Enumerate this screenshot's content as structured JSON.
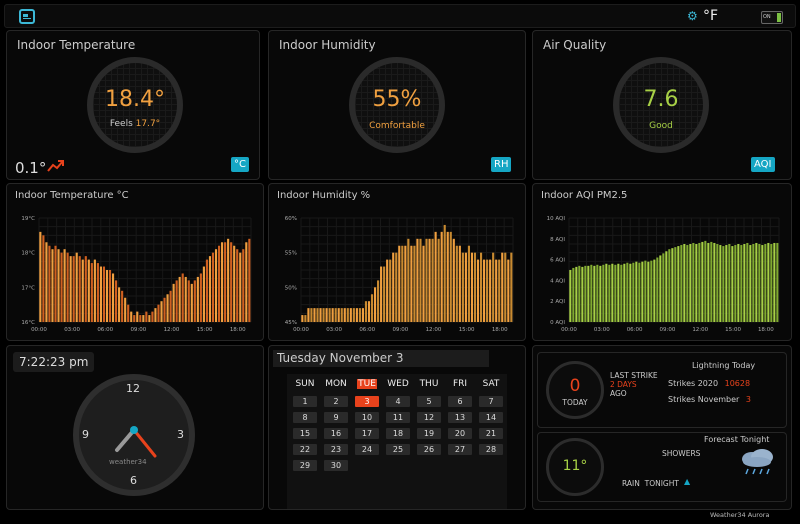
{
  "topbar": {
    "unit": "°F",
    "battery": "ON"
  },
  "temp_card": {
    "title": "Indoor Temperature",
    "value": "18.4°",
    "feels_label": "Feels",
    "feels_value": "17.7°",
    "trend": "0.1°",
    "unit_button": "°C"
  },
  "humidity_card": {
    "title": "Indoor Humidity",
    "value": "55%",
    "status": "Comfortable",
    "unit_button": "RH"
  },
  "air_card": {
    "title": "Air Quality",
    "value": "7.6",
    "status": "Good",
    "unit_button": "AQI"
  },
  "colors": {
    "accent": "#15a6c4",
    "temp": "#f0a040",
    "humidity": "#f0a040",
    "air": "#a7d046",
    "red": "#e8421c"
  },
  "chart_data": [
    {
      "type": "bar",
      "title": "Indoor Temperature °C",
      "y_ticks": [
        "19°C",
        "18°C",
        "17°C",
        "16°C"
      ],
      "x_ticks": [
        "00:00",
        "03:00",
        "06:00",
        "09:00",
        "12:00",
        "15:00",
        "18:00"
      ],
      "ylim": [
        16,
        19
      ],
      "values": [
        18.6,
        18.5,
        18.3,
        18.2,
        18.1,
        18.2,
        18.1,
        18.0,
        18.1,
        18.0,
        17.9,
        17.9,
        18.0,
        17.9,
        17.8,
        17.9,
        17.8,
        17.7,
        17.8,
        17.7,
        17.6,
        17.6,
        17.5,
        17.5,
        17.4,
        17.2,
        17.0,
        16.9,
        16.7,
        16.5,
        16.3,
        16.2,
        16.3,
        16.2,
        16.2,
        16.3,
        16.2,
        16.3,
        16.4,
        16.5,
        16.6,
        16.7,
        16.8,
        16.9,
        17.1,
        17.2,
        17.3,
        17.4,
        17.3,
        17.2,
        17.1,
        17.2,
        17.3,
        17.4,
        17.6,
        17.8,
        17.9,
        18.0,
        18.1,
        18.2,
        18.3,
        18.3,
        18.4,
        18.3,
        18.2,
        18.1,
        18.0,
        18.1,
        18.3,
        18.4
      ]
    },
    {
      "type": "bar",
      "title": "Indoor Humidity %",
      "y_ticks": [
        "60%",
        "55%",
        "50%",
        "45%"
      ],
      "x_ticks": [
        "00:00",
        "03:00",
        "06:00",
        "09:00",
        "12:00",
        "15:00",
        "18:00"
      ],
      "ylim": [
        45,
        60
      ],
      "values": [
        46,
        46,
        47,
        47,
        47,
        47,
        47,
        47,
        47,
        47,
        47,
        47,
        47,
        47,
        47,
        47,
        47,
        47,
        47,
        47,
        47,
        48,
        48,
        49,
        50,
        51,
        53,
        53,
        54,
        54,
        55,
        55,
        56,
        56,
        56,
        57,
        56,
        56,
        57,
        57,
        56,
        57,
        57,
        57,
        58,
        57,
        58,
        59,
        58,
        58,
        57,
        56,
        56,
        55,
        55,
        56,
        55,
        55,
        54,
        55,
        54,
        54,
        54,
        55,
        54,
        54,
        55,
        55,
        54,
        55
      ]
    },
    {
      "type": "bar",
      "title": "Indoor AQI PM2.5",
      "y_ticks": [
        "10 AQI",
        "8 AQI",
        "6 AQI",
        "4 AQI",
        "2 AQI",
        "0 AQI"
      ],
      "x_ticks": [
        "00:00",
        "03:00",
        "06:00",
        "09:00",
        "12:00",
        "15:00",
        "18:00"
      ],
      "ylim": [
        0,
        10
      ],
      "values": [
        5.0,
        5.2,
        5.3,
        5.4,
        5.3,
        5.4,
        5.4,
        5.5,
        5.4,
        5.5,
        5.4,
        5.5,
        5.6,
        5.5,
        5.6,
        5.5,
        5.6,
        5.5,
        5.6,
        5.7,
        5.6,
        5.7,
        5.8,
        5.7,
        5.8,
        5.9,
        5.8,
        5.9,
        6.0,
        6.2,
        6.4,
        6.6,
        6.8,
        7.0,
        7.1,
        7.2,
        7.3,
        7.4,
        7.5,
        7.4,
        7.5,
        7.6,
        7.5,
        7.6,
        7.7,
        7.8,
        7.6,
        7.7,
        7.6,
        7.5,
        7.4,
        7.3,
        7.4,
        7.5,
        7.3,
        7.4,
        7.5,
        7.4,
        7.5,
        7.6,
        7.4,
        7.5,
        7.6,
        7.5,
        7.4,
        7.5,
        7.6,
        7.5,
        7.6,
        7.6
      ]
    }
  ],
  "clock": {
    "time": "7:22:23 pm",
    "brand": "weather34",
    "numbers": {
      "twelve": "12",
      "three": "3",
      "six": "6",
      "nine": "9"
    }
  },
  "calendar": {
    "header": "Tuesday November 3",
    "dow": [
      "SUN",
      "MON",
      "TUE",
      "WED",
      "THU",
      "FRI",
      "SAT"
    ],
    "today": "3",
    "weeks": [
      [
        "1",
        "2",
        "3",
        "4",
        "5",
        "6",
        "7"
      ],
      [
        "8",
        "9",
        "10",
        "11",
        "12",
        "13",
        "14"
      ],
      [
        "15",
        "16",
        "17",
        "18",
        "19",
        "20",
        "21"
      ],
      [
        "22",
        "23",
        "24",
        "25",
        "26",
        "27",
        "28"
      ],
      [
        "29",
        "30"
      ]
    ]
  },
  "lightning": {
    "count": "0",
    "count_label": "TODAY",
    "last_strike": "LAST STRIKE",
    "days": "2 DAYS",
    "ago": "AGO",
    "title": "Lightning Today",
    "strikes_year_label": "Strikes 2020",
    "strikes_year": "10628",
    "strikes_month_label": "Strikes November",
    "strikes_month": "3"
  },
  "forecast": {
    "temp": "11°",
    "title": "Forecast Tonight",
    "condition": "SHOWERS",
    "rain_label": "RAIN  TONIGHT"
  },
  "credit": {
    "brand": "Weather34",
    "product": "Aurora"
  }
}
